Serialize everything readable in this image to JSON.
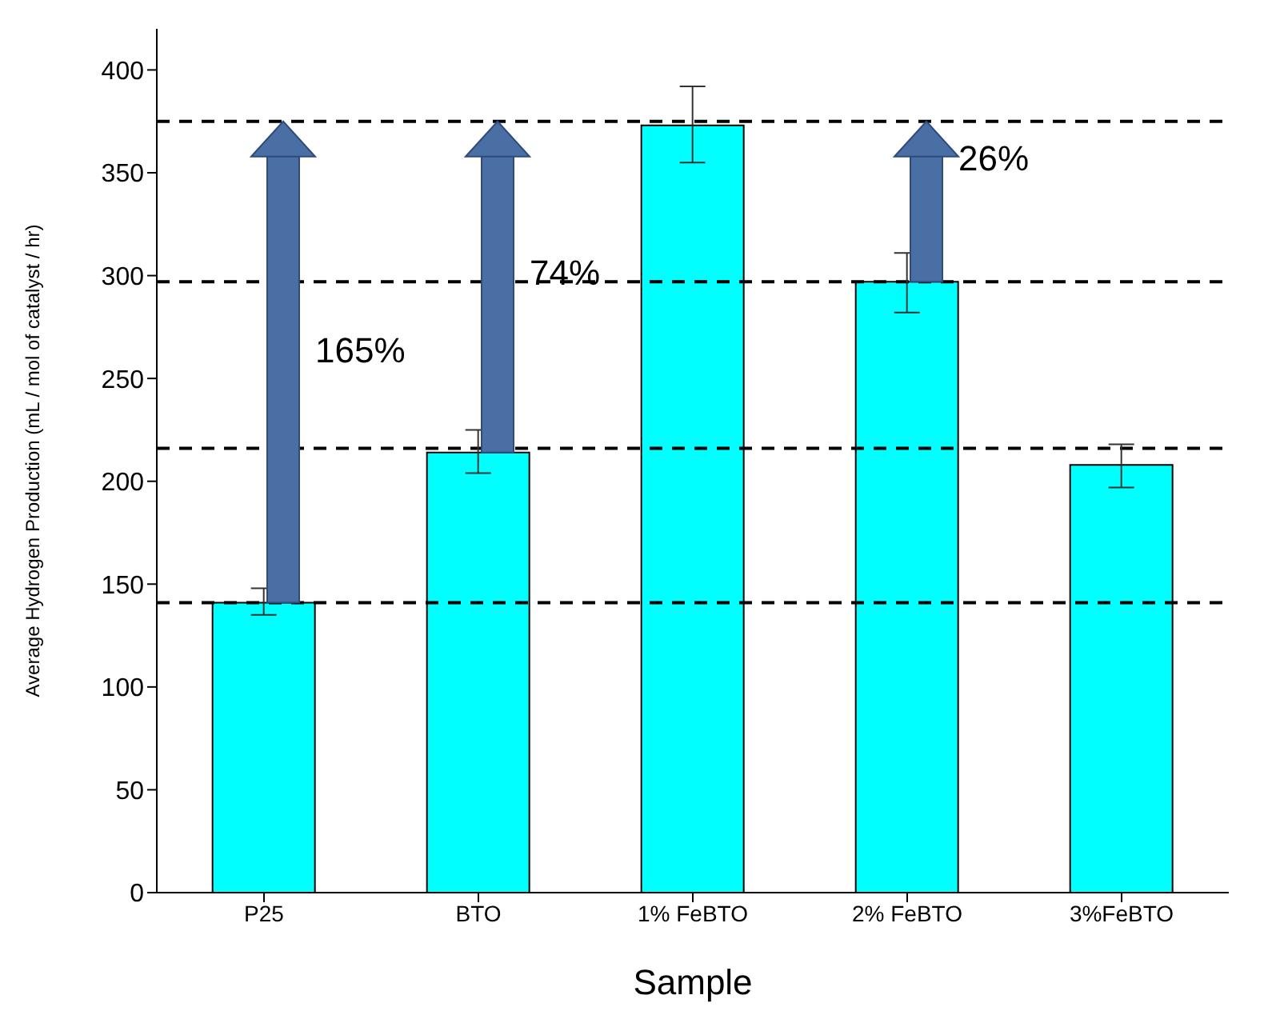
{
  "chart_data": {
    "type": "bar",
    "xlabel": "Sample",
    "ylabel": "Average Hydrogen Production (mL / mol of catalyst / hr)",
    "categories": [
      "P25",
      "BTO",
      "1% FeBTO",
      "2% FeBTO",
      "3%FeBTO"
    ],
    "values": [
      141,
      214,
      373,
      297,
      208
    ],
    "color": "#00ffff",
    "errors": [
      [
        135,
        148
      ],
      [
        204,
        225
      ],
      [
        355,
        392
      ],
      [
        282,
        311
      ],
      [
        197,
        218
      ]
    ],
    "ylim": [
      0,
      420
    ],
    "yticks": [
      0,
      50,
      100,
      150,
      200,
      250,
      300,
      350,
      400
    ],
    "grid": false,
    "ref_lines": [
      {
        "axis": "y",
        "value": 375,
        "line_style": "dashed",
        "color": "#000000"
      },
      {
        "axis": "y",
        "value": 297,
        "line_style": "dashed",
        "color": "#000000"
      },
      {
        "axis": "y",
        "value": 216,
        "line_style": "dashed",
        "color": "#000000"
      },
      {
        "axis": "y",
        "value": 141,
        "line_style": "dashed",
        "color": "#000000"
      }
    ],
    "annotations": [
      "165%",
      "74%",
      "26%"
    ]
  }
}
